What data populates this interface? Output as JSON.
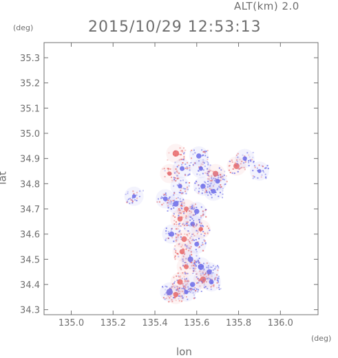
{
  "header": {
    "alt_label": "ALT(km) 2.0",
    "timestamp": "2015/10/29 12:53:13"
  },
  "chart_data": {
    "type": "heatmap",
    "title": "",
    "xlabel": "lon",
    "ylabel": "lat",
    "xunit": "(deg)",
    "yunit": "(deg)",
    "xlim": [
      134.87,
      136.18
    ],
    "ylim": [
      34.28,
      35.36
    ],
    "xticks": [
      "135.0",
      "135.2",
      "135.4",
      "135.6",
      "135.8",
      "136.0"
    ],
    "yticks": [
      "34.3",
      "34.4",
      "34.5",
      "34.6",
      "34.7",
      "34.8",
      "34.9",
      "35.0",
      "35.1",
      "35.2",
      "35.3"
    ],
    "colors": {
      "positive": "#e86a6a",
      "negative": "#6a6ae8",
      "axis": "#6e6e6e"
    },
    "clusters": [
      {
        "lon": 135.5,
        "lat": 34.92,
        "value": 0.9
      },
      {
        "lon": 135.53,
        "lat": 34.86,
        "value": -0.5
      },
      {
        "lon": 135.47,
        "lat": 34.84,
        "value": 0.4
      },
      {
        "lon": 135.61,
        "lat": 34.91,
        "value": -0.6
      },
      {
        "lon": 135.62,
        "lat": 34.86,
        "value": -0.4
      },
      {
        "lon": 135.69,
        "lat": 34.84,
        "value": 0.7
      },
      {
        "lon": 135.7,
        "lat": 34.81,
        "value": -0.5
      },
      {
        "lon": 135.79,
        "lat": 34.87,
        "value": 0.8
      },
      {
        "lon": 135.83,
        "lat": 34.9,
        "value": -0.4
      },
      {
        "lon": 135.63,
        "lat": 34.79,
        "value": -0.6
      },
      {
        "lon": 135.68,
        "lat": 34.77,
        "value": -0.5
      },
      {
        "lon": 135.52,
        "lat": 34.79,
        "value": -0.4
      },
      {
        "lon": 135.5,
        "lat": 34.72,
        "value": -0.7
      },
      {
        "lon": 135.55,
        "lat": 34.7,
        "value": 0.5
      },
      {
        "lon": 135.6,
        "lat": 34.69,
        "value": -0.6
      },
      {
        "lon": 135.52,
        "lat": 34.66,
        "value": 0.6
      },
      {
        "lon": 135.58,
        "lat": 34.64,
        "value": -0.5
      },
      {
        "lon": 135.62,
        "lat": 34.62,
        "value": 0.4
      },
      {
        "lon": 135.48,
        "lat": 34.6,
        "value": -0.6
      },
      {
        "lon": 135.54,
        "lat": 34.58,
        "value": 0.7
      },
      {
        "lon": 135.6,
        "lat": 34.56,
        "value": -0.5
      },
      {
        "lon": 135.53,
        "lat": 34.53,
        "value": 0.6
      },
      {
        "lon": 135.57,
        "lat": 34.5,
        "value": -0.7
      },
      {
        "lon": 135.55,
        "lat": 34.47,
        "value": 0.5
      },
      {
        "lon": 135.62,
        "lat": 34.47,
        "value": -0.8
      },
      {
        "lon": 135.66,
        "lat": 34.45,
        "value": -0.6
      },
      {
        "lon": 135.63,
        "lat": 34.42,
        "value": 0.8
      },
      {
        "lon": 135.58,
        "lat": 34.4,
        "value": -0.6
      },
      {
        "lon": 135.52,
        "lat": 34.41,
        "value": 0.7
      },
      {
        "lon": 135.47,
        "lat": 34.37,
        "value": -0.9
      },
      {
        "lon": 135.5,
        "lat": 34.36,
        "value": 0.6
      },
      {
        "lon": 135.55,
        "lat": 34.37,
        "value": -0.4
      },
      {
        "lon": 135.67,
        "lat": 34.41,
        "value": -0.5
      },
      {
        "lon": 135.45,
        "lat": 34.74,
        "value": -0.5
      },
      {
        "lon": 135.9,
        "lat": 34.85,
        "value": -0.3
      },
      {
        "lon": 135.3,
        "lat": 34.75,
        "value": -0.3
      }
    ]
  }
}
